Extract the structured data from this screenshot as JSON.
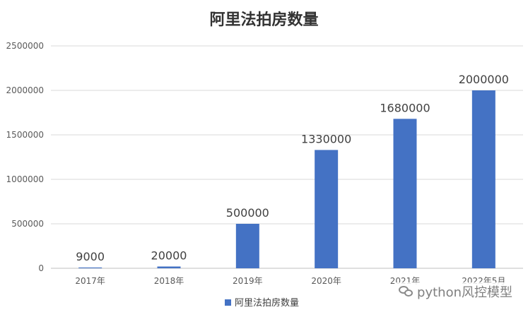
{
  "chart_data": {
    "type": "bar",
    "title": "阿里法拍房数量",
    "categories": [
      "2017年",
      "2018年",
      "2019年",
      "2020年",
      "2021年",
      "2022年5月"
    ],
    "series": [
      {
        "name": "阿里法拍房数量",
        "values": [
          9000,
          20000,
          500000,
          1330000,
          1680000,
          2000000
        ],
        "color": "#4472C4"
      }
    ],
    "data_labels": [
      "9000",
      "20000",
      "500000",
      "1330000",
      "1680000",
      "2000000"
    ],
    "ylim": [
      0,
      2500000
    ],
    "y_ticks": [
      0,
      500000,
      1000000,
      1500000,
      2000000,
      2500000
    ],
    "y_tick_labels": [
      "0",
      "500000",
      "1000000",
      "1500000",
      "2000000",
      "2500000"
    ],
    "grid": true,
    "legend_position": "bottom"
  },
  "watermark": {
    "icon": "wechat-icon",
    "text": "python风控模型"
  }
}
